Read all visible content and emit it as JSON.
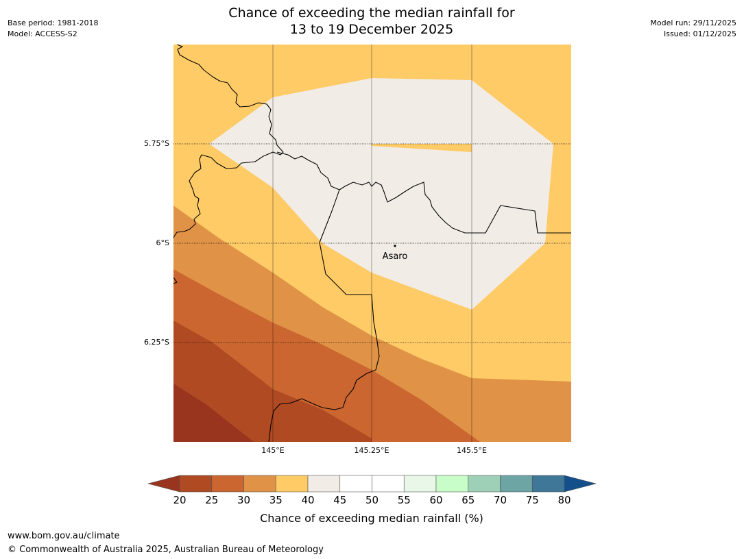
{
  "header": {
    "base_period": "Base period: 1981-2018",
    "model": "Model: ACCESS-S2",
    "title_line1": "Chance of exceeding the median rainfall for",
    "title_line2": "13 to 19 December 2025",
    "model_run": "Model run: 29/11/2025",
    "issued": "Issued: 01/12/2025"
  },
  "map": {
    "lat_labels": [
      "5.75°S",
      "6°S",
      "6.25°S"
    ],
    "lon_labels": [
      "145°E",
      "145.25°E",
      "145.5°E"
    ],
    "place_label": "Asaro",
    "colors": {
      "c20_25": "#b04a22",
      "c25_30": "#cb6630",
      "c30_35": "#e09346",
      "c35_40": "#fecb66",
      "c40_45": "#f1ece6",
      "darkest": "#99341e"
    }
  },
  "colorbar": {
    "ticks": [
      "20",
      "25",
      "30",
      "35",
      "40",
      "45",
      "50",
      "55",
      "60",
      "65",
      "70",
      "75",
      "80"
    ],
    "label": "Chance of exceeding median rainfall (%)",
    "segment_colors": [
      "#b04a22",
      "#cb6630",
      "#e09346",
      "#fecb66",
      "#f1ece6",
      "#ffffff",
      "#ffffff",
      "#e9f7e9",
      "#c8fcc8",
      "#9ed0b7",
      "#6da4a4",
      "#3f7798"
    ],
    "under_color": "#99341e",
    "over_color": "#124f8b"
  },
  "footer": {
    "url": "www.bom.gov.au/climate",
    "copyright": "© Commonwealth of Australia 2025, Australian Bureau of Meteorology"
  }
}
